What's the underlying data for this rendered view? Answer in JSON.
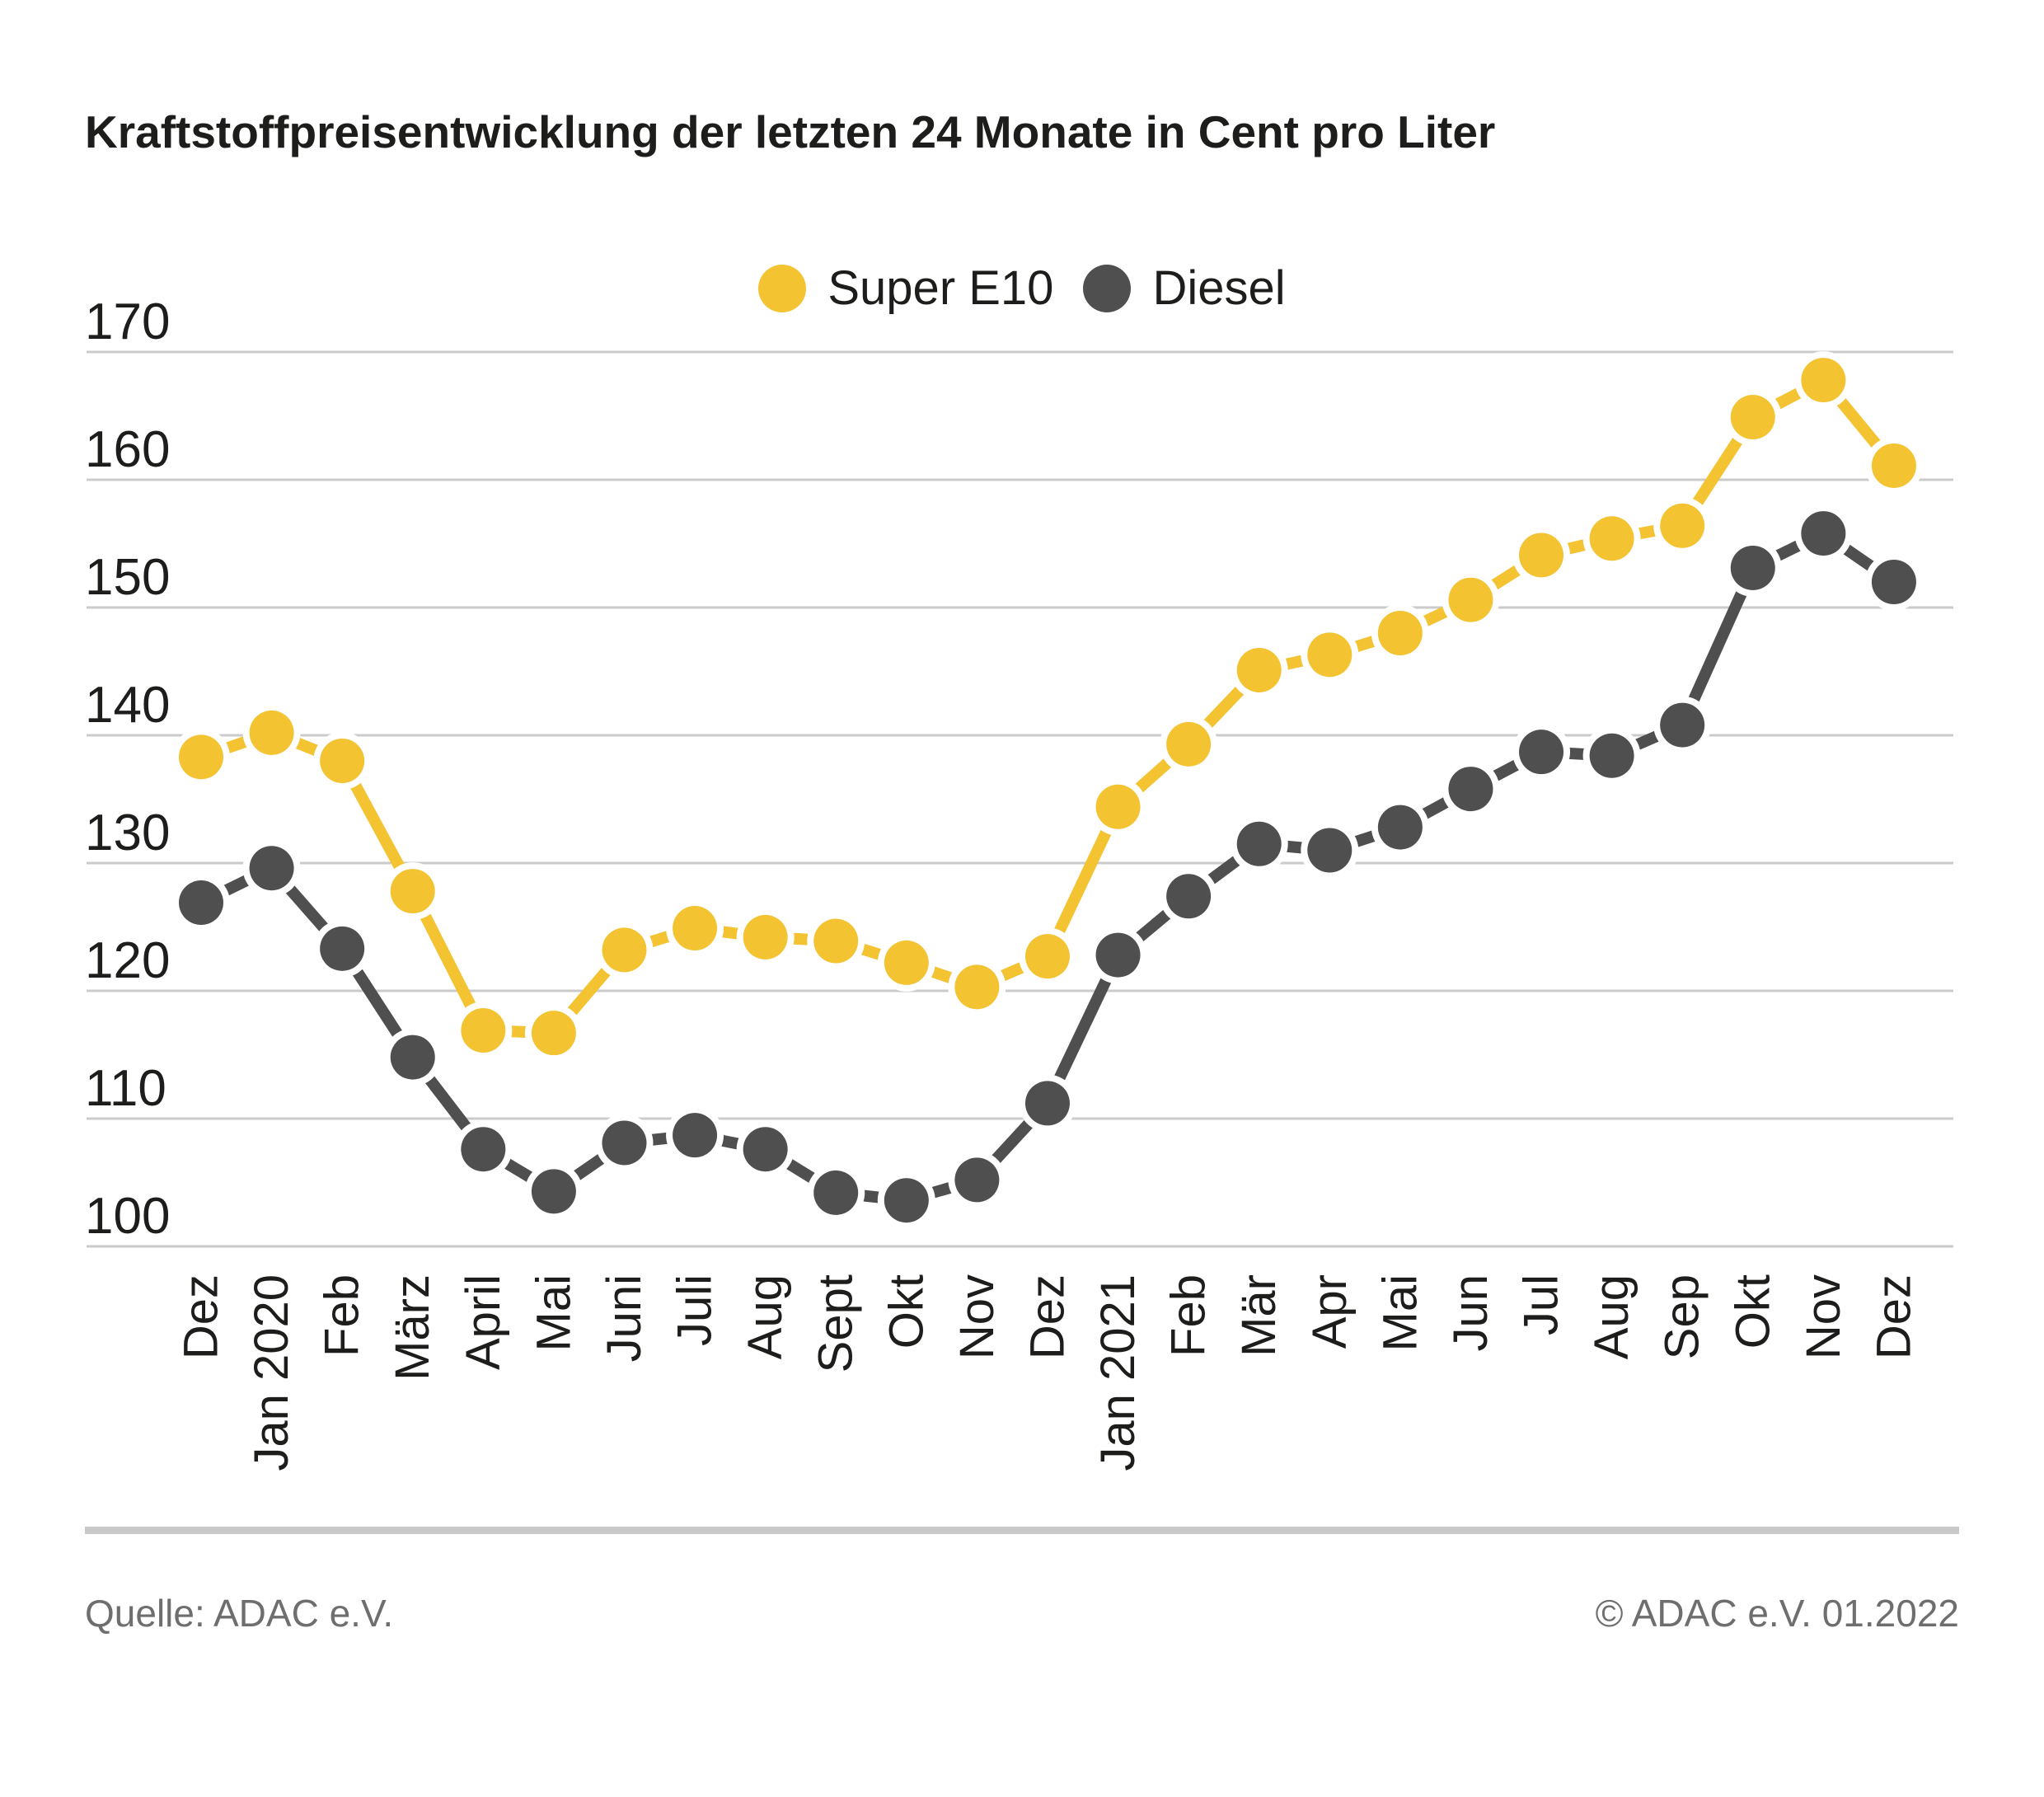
{
  "title": "Kraftstoffpreisentwicklung der letzten 24 Monate in Cent pro Liter",
  "footer": {
    "source": "Quelle: ADAC e.V.",
    "copyright": "© ADAC e.V. 01.2022"
  },
  "colors": {
    "super_e10_yellow": "#F3C332",
    "diesel_gray": "#4F4F4F",
    "text_dark": "#1D1D1B",
    "gridline": "#CBCBCB",
    "footer_text": "#6E6E6E",
    "separator": "#C9C9C9",
    "background": "#FFFFFF"
  },
  "chart_data": {
    "type": "line",
    "title": "Kraftstoffpreisentwicklung der letzten 24 Monate in Cent pro Liter",
    "unit": "Cent pro Liter",
    "categories": [
      "Dez",
      "Jan 2020",
      "Feb",
      "März",
      "April",
      "Mai",
      "Juni",
      "Juli",
      "Aug",
      "Sept",
      "Okt",
      "Nov",
      "Dez",
      "Jan 2021",
      "Feb",
      "Mär",
      "Apr",
      "Mai",
      "Jun",
      "Jul",
      "Aug",
      "Sep",
      "Okt",
      "Nov",
      "Dez"
    ],
    "series": [
      {
        "name": "Super E10",
        "color": "#F3C332",
        "values": [
          138.3,
          140.2,
          138.0,
          127.8,
          116.9,
          116.7,
          123.2,
          124.9,
          124.2,
          123.9,
          122.2,
          120.3,
          122.7,
          134.4,
          139.3,
          145.1,
          146.3,
          148.0,
          150.6,
          154.1,
          155.4,
          156.4,
          164.9,
          167.8,
          161.1
        ]
      },
      {
        "name": "Diesel",
        "color": "#4F4F4F",
        "values": [
          126.9,
          129.6,
          123.3,
          114.8,
          107.6,
          104.3,
          108.1,
          108.7,
          107.6,
          104.2,
          103.6,
          105.2,
          111.2,
          122.8,
          127.4,
          131.5,
          131.0,
          132.8,
          135.8,
          138.7,
          138.4,
          140.8,
          153.1,
          155.8,
          152.0
        ]
      }
    ],
    "ylim": [
      100,
      170
    ],
    "ytick_step": 10,
    "yticks": [
      100,
      110,
      120,
      130,
      140,
      150,
      160,
      170
    ],
    "grid": true,
    "legend_position": "top-center",
    "x_axis_rotation_deg": -90
  }
}
